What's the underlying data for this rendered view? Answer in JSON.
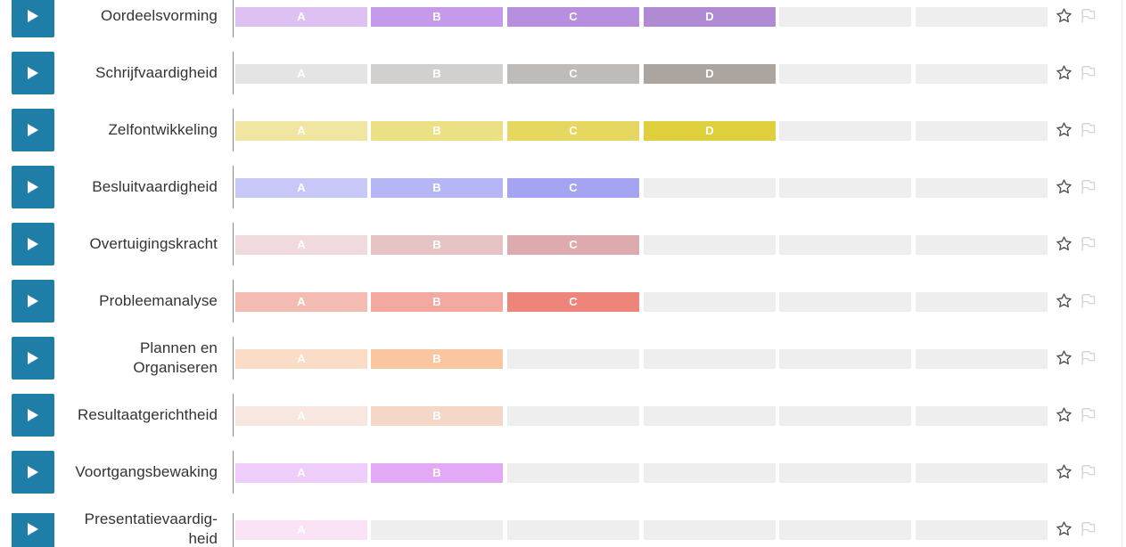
{
  "competencies": [
    {
      "name": "Oordeelsvorming",
      "segments": [
        {
          "label": "A",
          "color": "#dcc1f2"
        },
        {
          "label": "B",
          "color": "#c69aea"
        },
        {
          "label": "C",
          "color": "#b88ede"
        },
        {
          "label": "D",
          "color": "#b08ad2"
        },
        {
          "label": "",
          "color": ""
        },
        {
          "label": "",
          "color": ""
        }
      ]
    },
    {
      "name": "Schrijfvaardigheid",
      "segments": [
        {
          "label": "A",
          "color": "#e4e4e4"
        },
        {
          "label": "B",
          "color": "#d2d0cf"
        },
        {
          "label": "C",
          "color": "#bfbbb8"
        },
        {
          "label": "D",
          "color": "#aca49e"
        },
        {
          "label": "",
          "color": ""
        },
        {
          "label": "",
          "color": ""
        }
      ]
    },
    {
      "name": "Zelfontwikkeling",
      "segments": [
        {
          "label": "A",
          "color": "#f0e6a2"
        },
        {
          "label": "B",
          "color": "#ebe084"
        },
        {
          "label": "C",
          "color": "#e6d760"
        },
        {
          "label": "D",
          "color": "#e0cf3c"
        },
        {
          "label": "",
          "color": ""
        },
        {
          "label": "",
          "color": ""
        }
      ]
    },
    {
      "name": "Besluitvaardigheid",
      "segments": [
        {
          "label": "A",
          "color": "#c8c8f8"
        },
        {
          "label": "B",
          "color": "#b6b6f6"
        },
        {
          "label": "C",
          "color": "#a4a4f2"
        },
        {
          "label": "",
          "color": ""
        },
        {
          "label": "",
          "color": ""
        },
        {
          "label": "",
          "color": ""
        }
      ]
    },
    {
      "name": "Overtuigingskracht",
      "segments": [
        {
          "label": "A",
          "color": "#f1dadd"
        },
        {
          "label": "B",
          "color": "#e6c4c6"
        },
        {
          "label": "C",
          "color": "#ddaaad"
        },
        {
          "label": "",
          "color": ""
        },
        {
          "label": "",
          "color": ""
        },
        {
          "label": "",
          "color": ""
        }
      ]
    },
    {
      "name": "Probleemanalyse",
      "segments": [
        {
          "label": "A",
          "color": "#f5bcb4"
        },
        {
          "label": "B",
          "color": "#f3a8a0"
        },
        {
          "label": "C",
          "color": "#ee857a"
        },
        {
          "label": "",
          "color": ""
        },
        {
          "label": "",
          "color": ""
        },
        {
          "label": "",
          "color": ""
        }
      ]
    },
    {
      "name": "Plannen en Organiseren",
      "segments": [
        {
          "label": "A",
          "color": "#fbdcc6"
        },
        {
          "label": "B",
          "color": "#f9c6a0"
        },
        {
          "label": "",
          "color": ""
        },
        {
          "label": "",
          "color": ""
        },
        {
          "label": "",
          "color": ""
        },
        {
          "label": "",
          "color": ""
        }
      ]
    },
    {
      "name": "Resultaatgerichtheid",
      "segments": [
        {
          "label": "A",
          "color": "#f8e6e0"
        },
        {
          "label": "B",
          "color": "#f5d7c8"
        },
        {
          "label": "",
          "color": ""
        },
        {
          "label": "",
          "color": ""
        },
        {
          "label": "",
          "color": ""
        },
        {
          "label": "",
          "color": ""
        }
      ]
    },
    {
      "name": "Voortgangsbewaking",
      "segments": [
        {
          "label": "A",
          "color": "#efcdfa"
        },
        {
          "label": "B",
          "color": "#e3a8f6"
        },
        {
          "label": "",
          "color": ""
        },
        {
          "label": "",
          "color": ""
        },
        {
          "label": "",
          "color": ""
        },
        {
          "label": "",
          "color": ""
        }
      ]
    },
    {
      "name": "Presentatievaardig-heid",
      "segments": [
        {
          "label": "A",
          "color": "#fae3f5"
        },
        {
          "label": "",
          "color": ""
        },
        {
          "label": "",
          "color": ""
        },
        {
          "label": "",
          "color": ""
        },
        {
          "label": "",
          "color": ""
        },
        {
          "label": "",
          "color": ""
        }
      ]
    }
  ],
  "icons": {
    "play": "play-icon",
    "star": "star-outline-icon",
    "flag": "flag-outline-icon"
  },
  "colors": {
    "play_button": "#1f7ea8",
    "empty_segment": "#eeeeef",
    "icon": "#555555"
  }
}
